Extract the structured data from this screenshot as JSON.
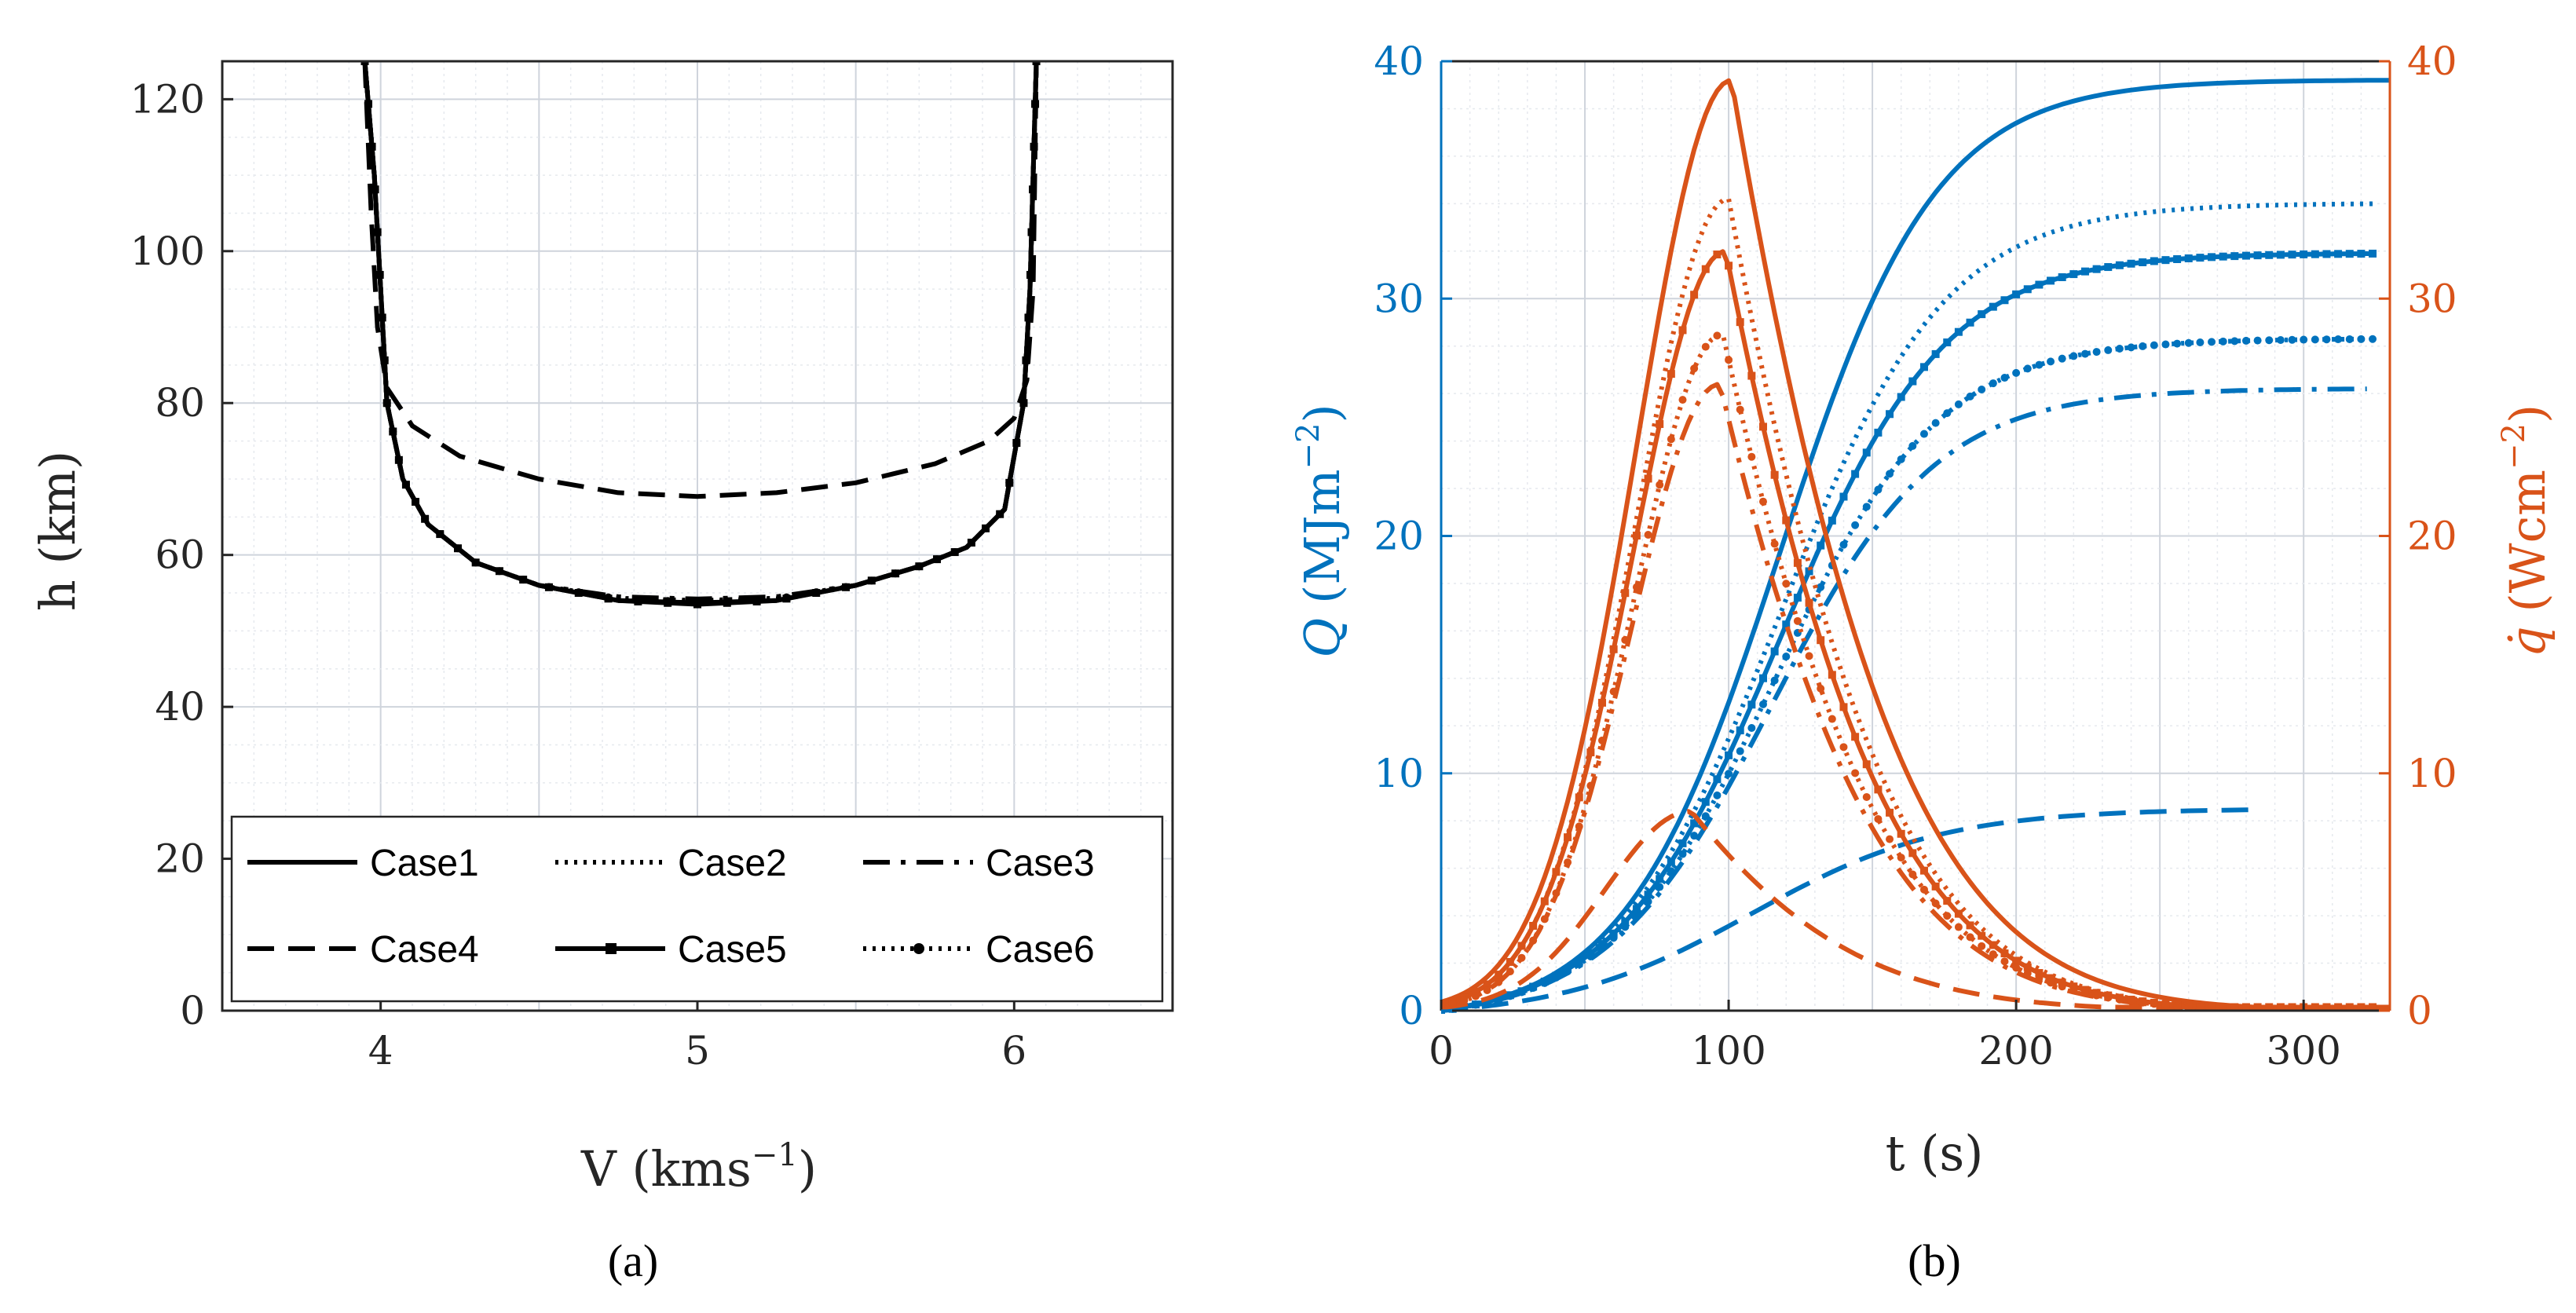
{
  "colors": {
    "left_axis": "#0072BD",
    "right_axis": "#D95319",
    "mono": "#000000",
    "grid": "#d9dde6"
  },
  "chart_data": [
    {
      "panel": "a",
      "caption": "(a)",
      "type": "line",
      "xlabel": "V (kms",
      "xlabel_sup": "−1",
      "xlabel_end": ")",
      "ylabel": "h (km)",
      "xlim": [
        3.5,
        6.5
      ],
      "ylim": [
        0,
        125
      ],
      "x_ticks": [
        "4",
        "5",
        "6"
      ],
      "y_ticks": [
        "0",
        "20",
        "40",
        "60",
        "80",
        "100",
        "120"
      ],
      "grid": true,
      "minor_grid": true,
      "legend_position": "bottom-center",
      "legend_columns": 3,
      "series": [
        {
          "name": "Case1",
          "style": "solid",
          "points": [
            [
              3.95,
              125
            ],
            [
              3.98,
              110
            ],
            [
              4.0,
              95
            ],
            [
              4.02,
              80
            ],
            [
              4.07,
              70
            ],
            [
              4.15,
              64
            ],
            [
              4.3,
              59
            ],
            [
              4.5,
              56
            ],
            [
              4.75,
              54
            ],
            [
              5.0,
              53.7
            ],
            [
              5.25,
              54
            ],
            [
              5.5,
              56
            ],
            [
              5.7,
              58.5
            ],
            [
              5.85,
              61
            ],
            [
              5.97,
              66
            ],
            [
              6.03,
              80
            ],
            [
              6.05,
              95
            ],
            [
              6.06,
              110
            ],
            [
              6.07,
              125
            ]
          ]
        },
        {
          "name": "Case2",
          "style": "dotted",
          "points": [
            [
              3.95,
              125
            ],
            [
              3.98,
              110
            ],
            [
              4.0,
              95
            ],
            [
              4.02,
              80
            ],
            [
              4.07,
              70
            ],
            [
              4.15,
              64
            ],
            [
              4.3,
              59
            ],
            [
              4.5,
              56
            ],
            [
              4.75,
              54.3
            ],
            [
              5.0,
              54
            ],
            [
              5.25,
              54.3
            ],
            [
              5.5,
              56
            ],
            [
              5.7,
              58.5
            ],
            [
              5.85,
              61
            ],
            [
              5.97,
              66
            ],
            [
              6.03,
              80
            ],
            [
              6.05,
              95
            ],
            [
              6.06,
              110
            ],
            [
              6.07,
              125
            ]
          ]
        },
        {
          "name": "Case3",
          "style": "dashdot",
          "points": [
            [
              3.95,
              125
            ],
            [
              3.98,
              110
            ],
            [
              4.0,
              95
            ],
            [
              4.02,
              80
            ],
            [
              4.07,
              70
            ],
            [
              4.15,
              64
            ],
            [
              4.3,
              59
            ],
            [
              4.5,
              56
            ],
            [
              4.75,
              54.5
            ],
            [
              5.0,
              54.2
            ],
            [
              5.25,
              54.5
            ],
            [
              5.5,
              56
            ],
            [
              5.7,
              58.5
            ],
            [
              5.85,
              61
            ],
            [
              5.97,
              66
            ],
            [
              6.03,
              80
            ],
            [
              6.05,
              95
            ],
            [
              6.06,
              110
            ],
            [
              6.07,
              125
            ]
          ]
        },
        {
          "name": "Case4",
          "style": "dashed",
          "points": [
            [
              3.95,
              125
            ],
            [
              3.97,
              105
            ],
            [
              3.99,
              90
            ],
            [
              4.02,
              82
            ],
            [
              4.1,
              77
            ],
            [
              4.25,
              73
            ],
            [
              4.5,
              70
            ],
            [
              4.75,
              68.2
            ],
            [
              5.0,
              67.7
            ],
            [
              5.25,
              68.2
            ],
            [
              5.5,
              69.5
            ],
            [
              5.75,
              72
            ],
            [
              5.92,
              75
            ],
            [
              6.0,
              78
            ],
            [
              6.04,
              83
            ],
            [
              6.06,
              95
            ],
            [
              6.07,
              125
            ]
          ]
        },
        {
          "name": "Case5",
          "style": "solid-square",
          "points": [
            [
              3.95,
              125
            ],
            [
              3.98,
              110
            ],
            [
              4.0,
              95
            ],
            [
              4.02,
              80
            ],
            [
              4.07,
              70
            ],
            [
              4.15,
              64
            ],
            [
              4.3,
              59
            ],
            [
              4.5,
              56
            ],
            [
              4.75,
              54
            ],
            [
              5.0,
              53.5
            ],
            [
              5.25,
              54
            ],
            [
              5.5,
              56
            ],
            [
              5.7,
              58.5
            ],
            [
              5.85,
              61
            ],
            [
              5.97,
              66
            ],
            [
              6.03,
              80
            ],
            [
              6.05,
              95
            ],
            [
              6.06,
              110
            ],
            [
              6.07,
              125
            ]
          ]
        },
        {
          "name": "Case6",
          "style": "dotted-circle",
          "points": [
            [
              3.95,
              125
            ],
            [
              3.98,
              110
            ],
            [
              4.0,
              95
            ],
            [
              4.02,
              80
            ],
            [
              4.07,
              70
            ],
            [
              4.15,
              64
            ],
            [
              4.3,
              59
            ],
            [
              4.5,
              56
            ],
            [
              4.75,
              54.2
            ],
            [
              5.0,
              53.8
            ],
            [
              5.25,
              54.2
            ],
            [
              5.5,
              56
            ],
            [
              5.7,
              58.5
            ],
            [
              5.85,
              61
            ],
            [
              5.97,
              66
            ],
            [
              6.03,
              80
            ],
            [
              6.05,
              95
            ],
            [
              6.06,
              110
            ],
            [
              6.07,
              125
            ]
          ]
        }
      ]
    },
    {
      "panel": "b",
      "caption": "(b)",
      "type": "line",
      "xlabel": "t (s)",
      "ylabel_left": "Q",
      "ylabel_left_units": "(MJm",
      "ylabel_left_sup": "−2",
      "ylabel_left_end": ")",
      "ylabel_right": "q̇",
      "ylabel_right_units": "(Wcm",
      "ylabel_right_sup": "−2",
      "ylabel_right_end": ")",
      "xlim": [
        0,
        330
      ],
      "ylim_left": [
        0,
        40
      ],
      "ylim_right": [
        0,
        40
      ],
      "x_ticks": [
        "0",
        "100",
        "200",
        "300"
      ],
      "y_ticks_left": [
        "0",
        "10",
        "20",
        "30",
        "40"
      ],
      "y_ticks_right": [
        "0",
        "10",
        "20",
        "30",
        "40"
      ],
      "grid": true,
      "minor_grid": true,
      "series": [
        {
          "name": "Case1",
          "axis": "left",
          "style": "solid",
          "final": 39.2,
          "tmid": 118,
          "k": 0.037,
          "tmax": 330
        },
        {
          "name": "Case2",
          "axis": "left",
          "style": "dotted",
          "final": 34.0,
          "tmid": 118,
          "k": 0.035,
          "tmax": 325
        },
        {
          "name": "Case3",
          "axis": "left",
          "style": "dashdot",
          "final": 26.2,
          "tmid": 115,
          "k": 0.035,
          "tmax": 322
        },
        {
          "name": "Case4",
          "axis": "left",
          "style": "dashed",
          "final": 8.5,
          "tmid": 108,
          "k": 0.03,
          "tmax": 282
        },
        {
          "name": "Case5",
          "axis": "left",
          "style": "solid-square",
          "final": 31.9,
          "tmid": 118,
          "k": 0.035,
          "tmax": 325
        },
        {
          "name": "Case6",
          "axis": "left",
          "style": "dotted-circle",
          "final": 28.3,
          "tmid": 116,
          "k": 0.035,
          "tmax": 325
        },
        {
          "name": "Case1",
          "axis": "right",
          "style": "solid",
          "peak": 39.2,
          "tpeak": 101,
          "w1": 33,
          "w2": 55,
          "tmax": 330
        },
        {
          "name": "Case2",
          "axis": "right",
          "style": "dotted",
          "peak": 34.2,
          "tpeak": 100,
          "w1": 32,
          "w2": 52,
          "tmax": 325
        },
        {
          "name": "Case3",
          "axis": "right",
          "style": "dashdot",
          "peak": 26.4,
          "tpeak": 97,
          "w1": 31,
          "w2": 52,
          "tmax": 322
        },
        {
          "name": "Case4",
          "axis": "right",
          "style": "dashed",
          "peak": 8.4,
          "tpeak": 87,
          "w1": 30,
          "w2": 55,
          "tmax": 315
        },
        {
          "name": "Case5",
          "axis": "right",
          "style": "solid-square",
          "peak": 32.0,
          "tpeak": 99,
          "w1": 32,
          "w2": 52,
          "tmax": 325
        },
        {
          "name": "Case6",
          "axis": "right",
          "style": "dotted-circle",
          "peak": 28.5,
          "tpeak": 98,
          "w1": 31,
          "w2": 52,
          "tmax": 325
        }
      ]
    }
  ]
}
